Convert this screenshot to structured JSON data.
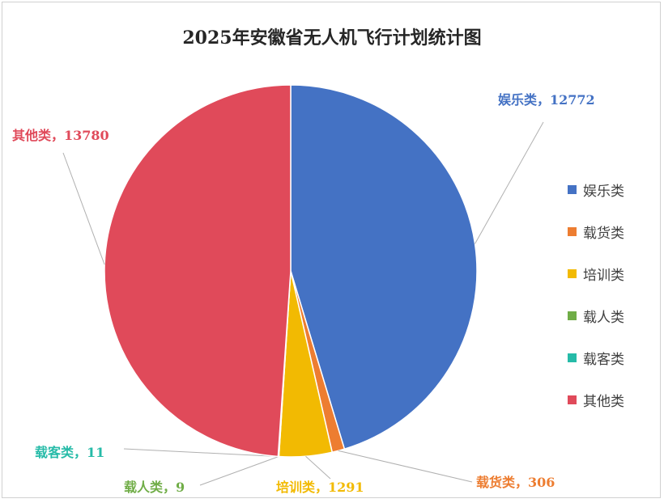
{
  "chart_data": {
    "type": "pie",
    "title": "2025年安徽省无人机飞行计划统计图",
    "slices": [
      {
        "name": "娱乐类",
        "value": 12772,
        "color": "#4472C4"
      },
      {
        "name": "载货类",
        "value": 306,
        "color": "#ED7D31"
      },
      {
        "name": "培训类",
        "value": 1291,
        "color": "#F2BA02"
      },
      {
        "name": "载人类",
        "value": 9,
        "color": "#70AD47"
      },
      {
        "name": "载客类",
        "value": 11,
        "color": "#26BBA8"
      },
      {
        "name": "其他类",
        "value": 13780,
        "color": "#E04A5A"
      }
    ],
    "data_labels": [
      "娱乐类，12772",
      "载货类，306",
      "培训类，1291",
      "载人类，9",
      "载客类，11",
      "其他类，13780"
    ],
    "legend": {
      "position": "right",
      "entries": [
        "娱乐类",
        "载货类",
        "培训类",
        "载人类",
        "载客类",
        "其他类"
      ]
    },
    "start_angle": "12 o'clock",
    "direction": "clockwise"
  }
}
